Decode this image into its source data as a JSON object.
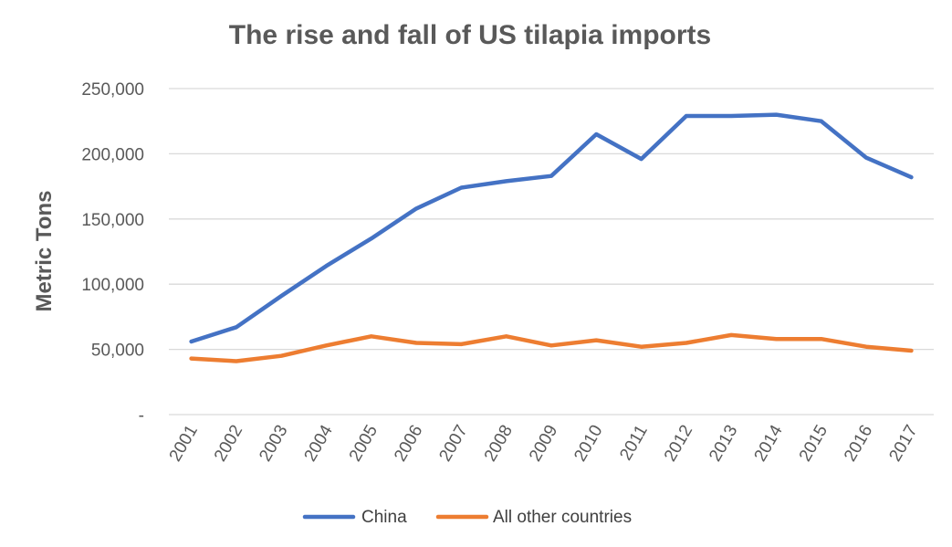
{
  "chart_data": {
    "type": "line",
    "title": "The rise and fall of US tilapia imports",
    "xlabel": "",
    "ylabel": "Metric Tons",
    "categories": [
      "2001",
      "2002",
      "2003",
      "2004",
      "2005",
      "2006",
      "2007",
      "2008",
      "2009",
      "2010",
      "2011",
      "2012",
      "2013",
      "2014",
      "2015",
      "2016",
      "2017"
    ],
    "series": [
      {
        "name": "China",
        "color": "#4472C4",
        "values": [
          56000,
          67000,
          91000,
          114000,
          135000,
          158000,
          174000,
          179000,
          183000,
          215000,
          196000,
          229000,
          229000,
          230000,
          225000,
          197000,
          182000
        ]
      },
      {
        "name": "All other countries",
        "color": "#ED7D31",
        "values": [
          43000,
          41000,
          45000,
          53000,
          60000,
          55000,
          54000,
          60000,
          53000,
          57000,
          52000,
          55000,
          61000,
          58000,
          58000,
          52000,
          49000
        ]
      }
    ],
    "ylim": [
      0,
      250000
    ],
    "yticks": [
      {
        "value": 0,
        "label": "-"
      },
      {
        "value": 50000,
        "label": "50,000"
      },
      {
        "value": 100000,
        "label": "100,000"
      },
      {
        "value": 150000,
        "label": "150,000"
      },
      {
        "value": 200000,
        "label": "200,000"
      },
      {
        "value": 250000,
        "label": "250,000"
      }
    ],
    "grid": true,
    "legend": "bottom"
  }
}
